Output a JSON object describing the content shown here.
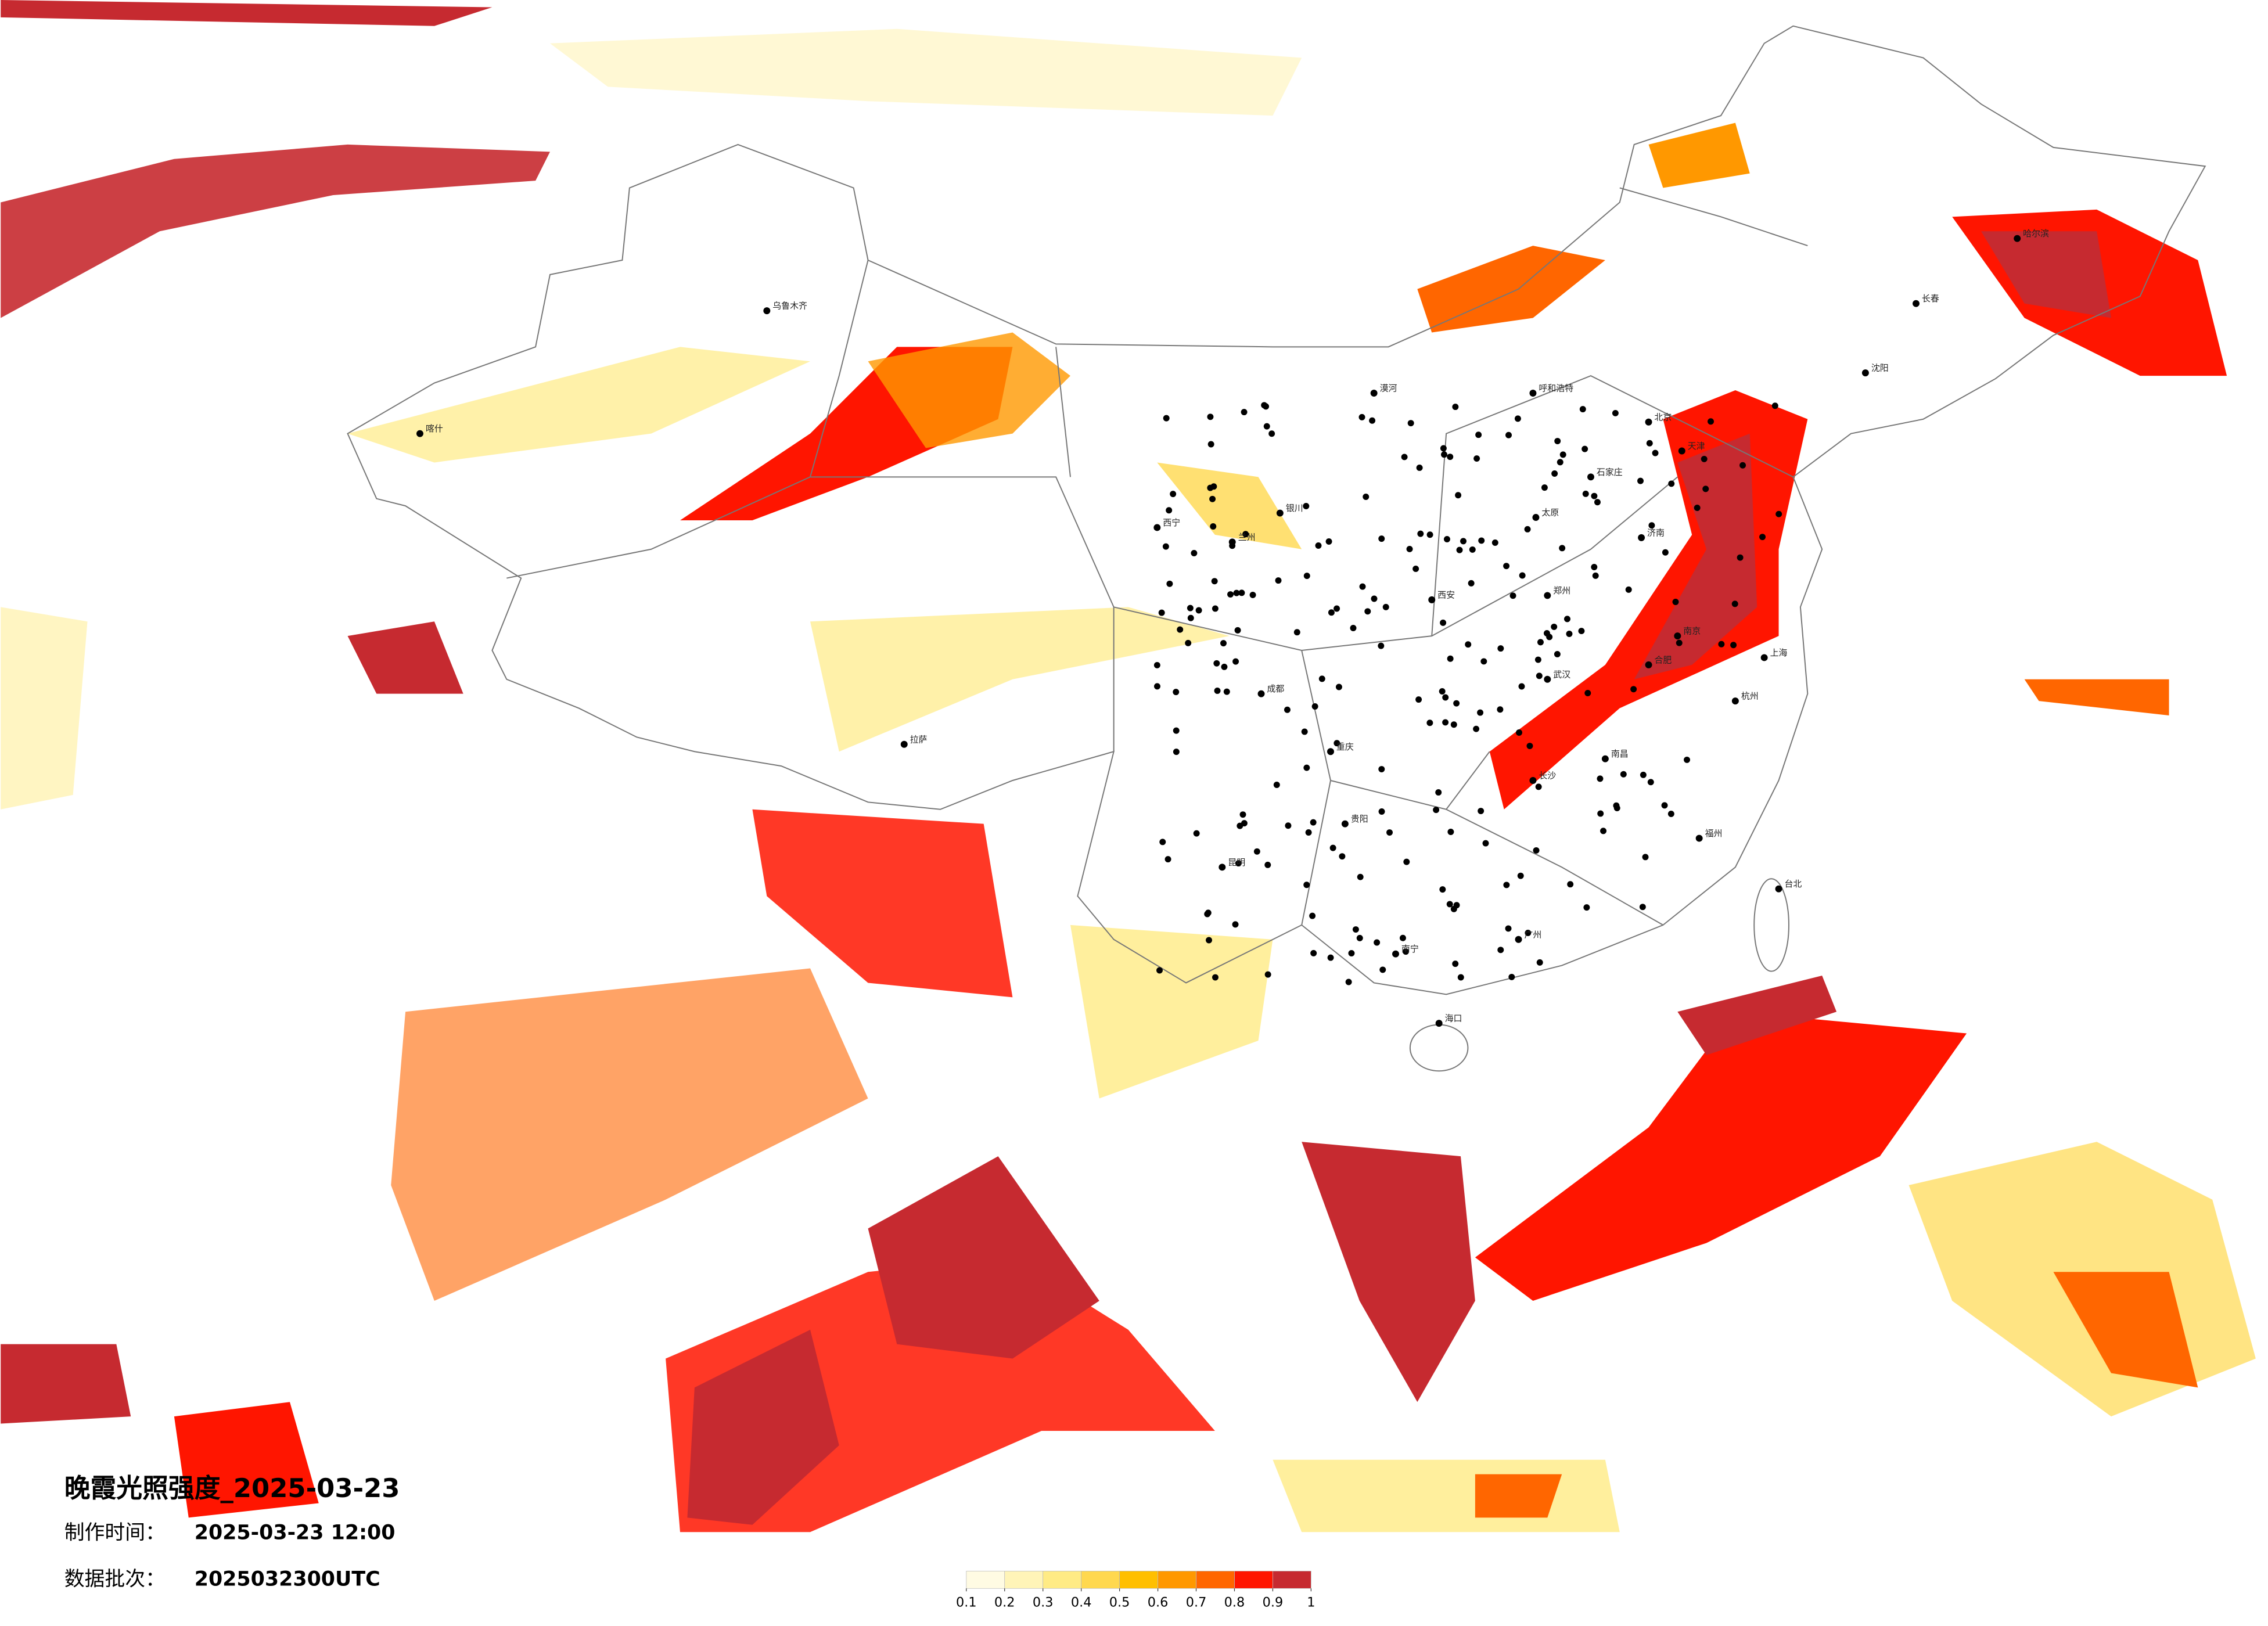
{
  "header": {
    "title": "晚霞光照强度_2025-03-23",
    "made_label": "制作时间：",
    "made_time": "2025-03-23 12:00",
    "batch_label": "数据批次：",
    "batch": "2025032300UTC"
  },
  "legend": {
    "ticks": [
      0.1,
      0.2,
      0.3,
      0.4,
      0.5,
      0.6,
      0.7,
      0.8,
      0.9,
      1
    ],
    "colors": [
      "#fffbe3",
      "#fff4b8",
      "#ffeb85",
      "#ffd84f",
      "#ffbf00",
      "#ff9800",
      "#ff6600",
      "#ff1500",
      "#c62a30"
    ]
  },
  "cities": [
    "漠河",
    "哈尔滨",
    "长春",
    "沈阳",
    "北京",
    "天津",
    "石家庄",
    "太原",
    "呼和浩特",
    "济南",
    "郑州",
    "西安",
    "兰州",
    "西宁",
    "银川",
    "乌鲁木齐",
    "喀什",
    "拉萨",
    "成都",
    "重庆",
    "武汉",
    "南京",
    "上海",
    "杭州",
    "合肥",
    "长沙",
    "南昌",
    "福州",
    "贵阳",
    "昆明",
    "南宁",
    "广州",
    "海口",
    "台北"
  ]
}
